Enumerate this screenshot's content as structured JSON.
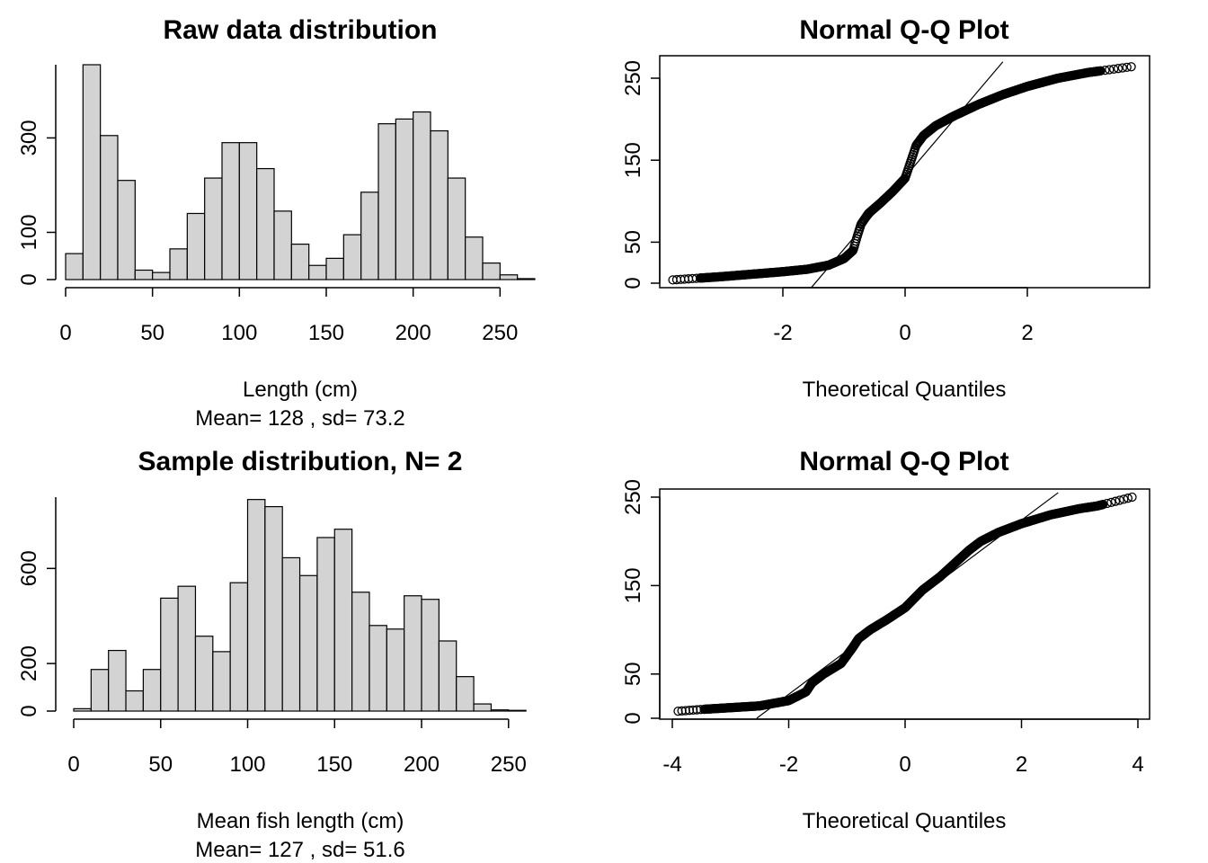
{
  "chart_data": [
    {
      "type": "bar",
      "subtype": "histogram",
      "title": "Raw data distribution",
      "xlabel": "Length (cm)",
      "sublabel": "Mean= 128 , sd= 73.2",
      "ylabel": "",
      "bin_width": 10,
      "bin_starts": [
        0,
        10,
        20,
        30,
        40,
        50,
        60,
        70,
        80,
        90,
        100,
        110,
        120,
        130,
        140,
        150,
        160,
        170,
        180,
        190,
        200,
        210,
        220,
        230,
        240,
        250,
        260
      ],
      "values": [
        55,
        455,
        305,
        210,
        20,
        15,
        65,
        140,
        215,
        290,
        290,
        235,
        145,
        75,
        30,
        45,
        95,
        185,
        330,
        340,
        355,
        315,
        215,
        90,
        35,
        10,
        2
      ],
      "x_ticks": [
        0,
        50,
        100,
        150,
        200,
        250
      ],
      "y_ticks": [
        0,
        100,
        300
      ],
      "xlim": [
        0,
        270
      ],
      "ylim": [
        0,
        455
      ],
      "bar_fill": "#d3d3d3"
    },
    {
      "type": "scatter",
      "subtype": "qq",
      "title": "Normal Q-Q Plot",
      "xlabel": "Theoretical Quantiles",
      "ylabel": "",
      "x_ticks": [
        -2,
        0,
        2
      ],
      "y_ticks": [
        0,
        50,
        150,
        250
      ],
      "xlim": [
        -4,
        4
      ],
      "ylim": [
        0,
        270
      ],
      "quantile_curve": [
        [
          -3.8,
          4
        ],
        [
          -3.0,
          8
        ],
        [
          -2.5,
          11
        ],
        [
          -2.0,
          14
        ],
        [
          -1.6,
          17
        ],
        [
          -1.25,
          22
        ],
        [
          -1.0,
          30
        ],
        [
          -0.85,
          40
        ],
        [
          -0.78,
          58
        ],
        [
          -0.72,
          72
        ],
        [
          -0.6,
          85
        ],
        [
          -0.4,
          98
        ],
        [
          -0.2,
          112
        ],
        [
          0.0,
          128
        ],
        [
          0.1,
          150
        ],
        [
          0.18,
          168
        ],
        [
          0.3,
          180
        ],
        [
          0.5,
          192
        ],
        [
          0.8,
          204
        ],
        [
          1.2,
          218
        ],
        [
          1.6,
          230
        ],
        [
          2.0,
          240
        ],
        [
          2.5,
          250
        ],
        [
          3.0,
          257
        ],
        [
          3.3,
          260
        ],
        [
          3.7,
          264
        ]
      ],
      "reference_line": [
        [
          -1.53,
          -5
        ],
        [
          1.6,
          270
        ]
      ]
    },
    {
      "type": "bar",
      "subtype": "histogram",
      "title": "Sample distribution, N= 2",
      "xlabel": "Mean fish length (cm)",
      "sublabel": "Mean= 127 , sd= 51.6",
      "ylabel": "",
      "bin_width": 10,
      "bin_starts": [
        0,
        10,
        20,
        30,
        40,
        50,
        60,
        70,
        80,
        90,
        100,
        110,
        120,
        130,
        140,
        150,
        160,
        170,
        180,
        190,
        200,
        210,
        220,
        230,
        240,
        250
      ],
      "values": [
        10,
        175,
        255,
        85,
        175,
        475,
        525,
        315,
        250,
        540,
        890,
        860,
        645,
        570,
        730,
        765,
        500,
        360,
        345,
        485,
        470,
        295,
        145,
        30,
        5,
        3
      ],
      "x_ticks": [
        0,
        50,
        100,
        150,
        200,
        250
      ],
      "y_ticks": [
        0,
        200,
        600
      ],
      "xlim": [
        0,
        262
      ],
      "ylim": [
        0,
        900
      ],
      "bar_fill": "#d3d3d3"
    },
    {
      "type": "scatter",
      "subtype": "qq",
      "title": "Normal Q-Q Plot",
      "xlabel": "Theoretical Quantiles",
      "ylabel": "",
      "x_ticks": [
        -4,
        -2,
        0,
        2,
        4
      ],
      "y_ticks": [
        0,
        50,
        150,
        250
      ],
      "xlim": [
        -4,
        4
      ],
      "ylim": [
        0,
        250
      ],
      "quantile_curve": [
        [
          -3.9,
          8
        ],
        [
          -3.5,
          10
        ],
        [
          -3.0,
          12
        ],
        [
          -2.5,
          14
        ],
        [
          -2.0,
          20
        ],
        [
          -1.7,
          30
        ],
        [
          -1.6,
          40
        ],
        [
          -1.4,
          50
        ],
        [
          -1.1,
          62
        ],
        [
          -0.9,
          80
        ],
        [
          -0.8,
          90
        ],
        [
          -0.6,
          100
        ],
        [
          -0.3,
          112
        ],
        [
          0.0,
          125
        ],
        [
          0.3,
          145
        ],
        [
          0.6,
          160
        ],
        [
          0.9,
          178
        ],
        [
          1.1,
          190
        ],
        [
          1.3,
          200
        ],
        [
          1.6,
          210
        ],
        [
          2.0,
          220
        ],
        [
          2.5,
          230
        ],
        [
          3.0,
          237
        ],
        [
          3.3,
          240
        ],
        [
          3.9,
          250
        ]
      ],
      "reference_line": [
        [
          -2.55,
          0
        ],
        [
          2.63,
          255
        ]
      ]
    }
  ]
}
